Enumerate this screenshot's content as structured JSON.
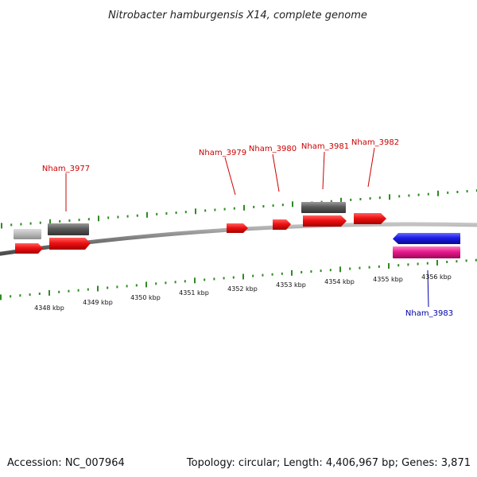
{
  "title": "Nitrobacter hamburgensis X14, complete genome",
  "accession": "Accession: NC_007964",
  "summary": "Topology: circular; Length: 4,406,967 bp; Genes: 3,871",
  "colors": {
    "forward_gene": "#ee1111",
    "reverse_gene": "#1a1ae6",
    "reverse_cds_pink": "#e8188c",
    "rna_gray_dark": "#5a5a5a",
    "rna_gray_light": "#b8b8b8",
    "backbone": "#8a8a8a",
    "ticks": "#2e8b22",
    "label_forward": "#cc0000",
    "label_reverse": "#0000aa"
  },
  "kbp_labels": [
    "4348 kbp",
    "4349 kbp",
    "4350 kbp",
    "4351 kbp",
    "4352 kbp",
    "4353 kbp",
    "4354 kbp",
    "4355 kbp",
    "4356 kbp"
  ],
  "gene_labels": [
    {
      "name": "Nham_3977",
      "strand": "forward"
    },
    {
      "name": "Nham_3979",
      "strand": "forward"
    },
    {
      "name": "Nham_3980",
      "strand": "forward"
    },
    {
      "name": "Nham_3981",
      "strand": "forward"
    },
    {
      "name": "Nham_3982",
      "strand": "forward"
    },
    {
      "name": "Nham_3983",
      "strand": "reverse"
    }
  ]
}
